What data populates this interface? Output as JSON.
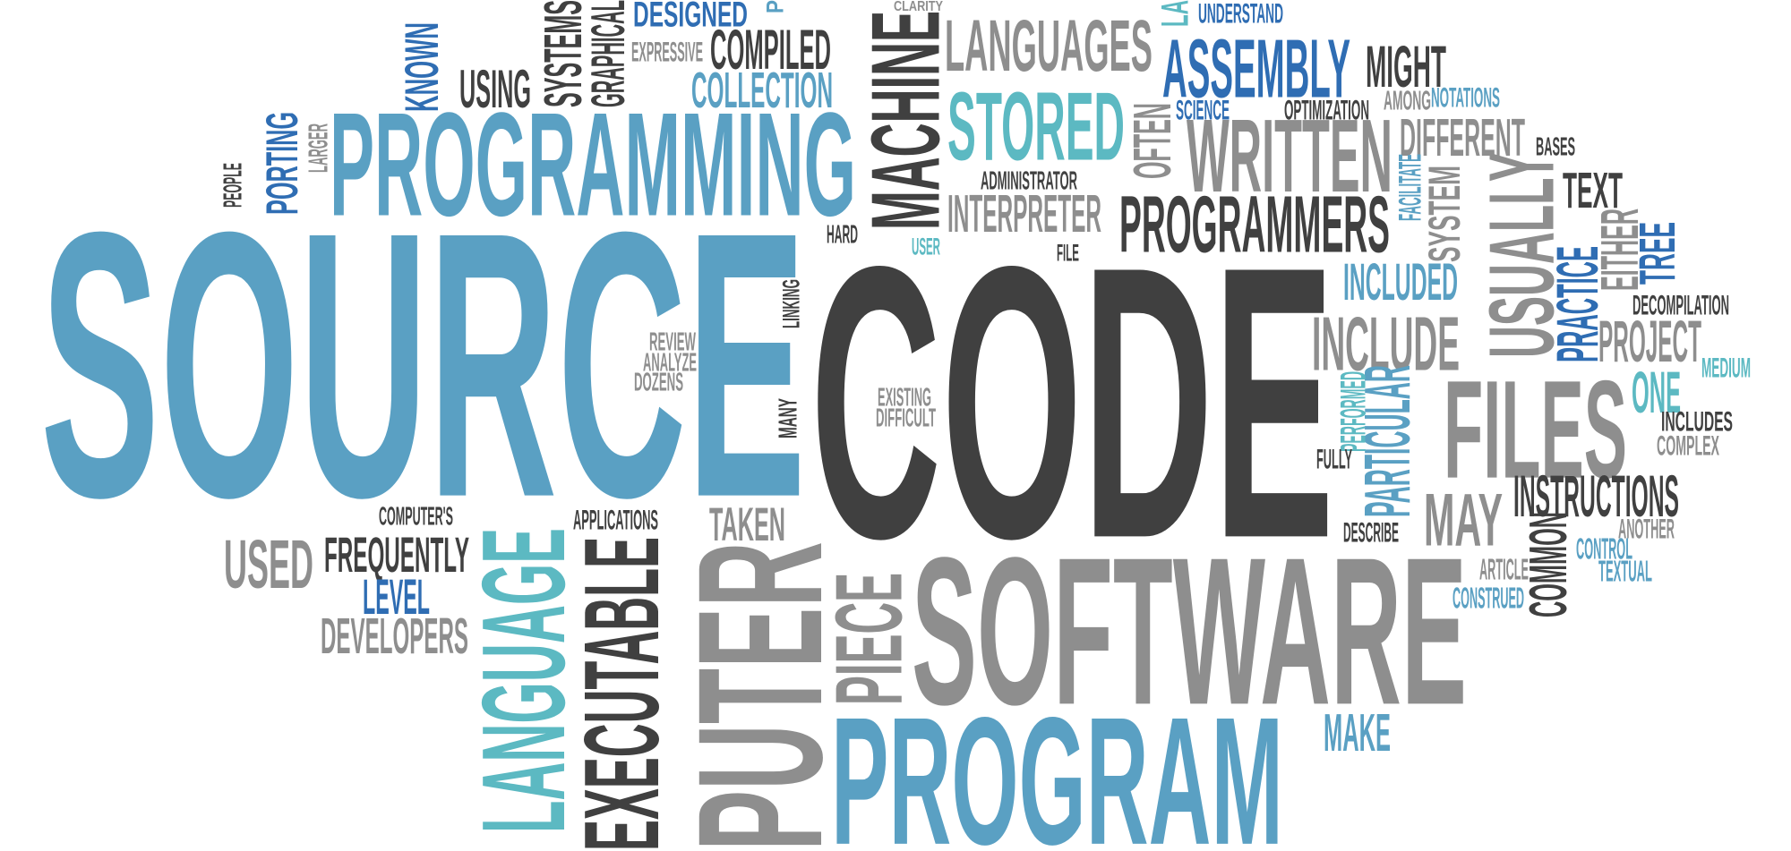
{
  "colors": {
    "dark": "#404040",
    "gray": "#8e8e8e",
    "blue": "#5aa0c3",
    "navy": "#2f6db3",
    "teal": "#5cb9c2"
  },
  "words": [
    {
      "text": "SOURCE",
      "color": "blue"
    },
    {
      "text": "CODE",
      "color": "dark"
    },
    {
      "text": "PROGRAMMING",
      "color": "blue"
    },
    {
      "text": "SOFTWARE",
      "color": "gray"
    },
    {
      "text": "PROGRAM",
      "color": "blue"
    },
    {
      "text": "PUTER",
      "color": "gray"
    },
    {
      "text": "EXECUTABLE",
      "color": "dark"
    },
    {
      "text": "LANGUAGE",
      "color": "teal"
    },
    {
      "text": "PIECE",
      "color": "gray"
    },
    {
      "text": "MACHINE",
      "color": "dark"
    },
    {
      "text": "LANGUAGES",
      "color": "gray"
    },
    {
      "text": "STORED",
      "color": "teal"
    },
    {
      "text": "ASSEMBLY",
      "color": "navy"
    },
    {
      "text": "MIGHT",
      "color": "dark"
    },
    {
      "text": "WRITTEN",
      "color": "gray"
    },
    {
      "text": "DIFFERENT",
      "color": "gray"
    },
    {
      "text": "PROGRAMMERS",
      "color": "dark"
    },
    {
      "text": "INTERPRETER",
      "color": "gray"
    },
    {
      "text": "ADMINISTRATOR",
      "color": "dark"
    },
    {
      "text": "INCLUDED",
      "color": "blue"
    },
    {
      "text": "INCLUDE",
      "color": "gray"
    },
    {
      "text": "USUALLY",
      "color": "gray"
    },
    {
      "text": "TEXT",
      "color": "dark"
    },
    {
      "text": "FILES",
      "color": "gray"
    },
    {
      "text": "PROJECT",
      "color": "gray"
    },
    {
      "text": "ONE",
      "color": "teal"
    },
    {
      "text": "MEDIUM",
      "color": "teal"
    },
    {
      "text": "DECOMPILATION",
      "color": "dark"
    },
    {
      "text": "TREE",
      "color": "navy"
    },
    {
      "text": "EITHER",
      "color": "gray"
    },
    {
      "text": "PRACTICE",
      "color": "navy"
    },
    {
      "text": "SYSTEM",
      "color": "gray"
    },
    {
      "text": "FACILITATE",
      "color": "blue"
    },
    {
      "text": "BASES",
      "color": "dark"
    },
    {
      "text": "OPTIMIZATION",
      "color": "dark"
    },
    {
      "text": "AMONG",
      "color": "gray"
    },
    {
      "text": "NOTATIONS",
      "color": "blue"
    },
    {
      "text": "SCIENCE",
      "color": "navy"
    },
    {
      "text": "OFTEN",
      "color": "gray"
    },
    {
      "text": "UNDERSTAND",
      "color": "navy"
    },
    {
      "text": "LA",
      "color": "teal"
    },
    {
      "text": "CLARITY",
      "color": "gray"
    },
    {
      "text": "INSTRUCTIONS",
      "color": "dark"
    },
    {
      "text": "MAY",
      "color": "gray"
    },
    {
      "text": "COMMON",
      "color": "dark"
    },
    {
      "text": "ANOTHER",
      "color": "gray"
    },
    {
      "text": "CONTROL",
      "color": "blue"
    },
    {
      "text": "TEXTUAL",
      "color": "blue"
    },
    {
      "text": "ARTICLE",
      "color": "gray"
    },
    {
      "text": "CONSTRUED",
      "color": "blue"
    },
    {
      "text": "INCLUDES",
      "color": "dark"
    },
    {
      "text": "COMPLEX",
      "color": "gray"
    },
    {
      "text": "PARTICULAR",
      "color": "blue"
    },
    {
      "text": "PERFORMED",
      "color": "teal"
    },
    {
      "text": "FULLY",
      "color": "dark"
    },
    {
      "text": "DESCRIBE",
      "color": "dark"
    },
    {
      "text": "MAKE",
      "color": "blue"
    },
    {
      "text": "EXISTING",
      "color": "gray"
    },
    {
      "text": "DIFFICULT",
      "color": "gray"
    },
    {
      "text": "FILE",
      "color": "dark"
    },
    {
      "text": "USER",
      "color": "teal"
    },
    {
      "text": "HARD",
      "color": "dark"
    },
    {
      "text": "LINKING",
      "color": "dark"
    },
    {
      "text": "MANY",
      "color": "dark"
    },
    {
      "text": "REVIEW",
      "color": "gray"
    },
    {
      "text": "ANALYZE",
      "color": "gray"
    },
    {
      "text": "DOZENS",
      "color": "gray"
    },
    {
      "text": "TAKEN",
      "color": "gray"
    },
    {
      "text": "APPLICATIONS",
      "color": "dark"
    },
    {
      "text": "COMPUTER'S",
      "color": "dark"
    },
    {
      "text": "USED",
      "color": "gray"
    },
    {
      "text": "FREQUENTLY",
      "color": "dark"
    },
    {
      "text": "LEVEL",
      "color": "navy"
    },
    {
      "text": "DEVELOPERS",
      "color": "gray"
    },
    {
      "text": "DESIGNED",
      "color": "navy"
    },
    {
      "text": "P",
      "color": "blue"
    },
    {
      "text": "EXPRESSIVE",
      "color": "gray"
    },
    {
      "text": "COMPILED",
      "color": "dark"
    },
    {
      "text": "COLLECTION",
      "color": "blue"
    },
    {
      "text": "GRAPHICAL",
      "color": "dark"
    },
    {
      "text": "SYSTEMS",
      "color": "dark"
    },
    {
      "text": "USING",
      "color": "dark"
    },
    {
      "text": "KNOWN",
      "color": "navy"
    },
    {
      "text": "PORTING",
      "color": "navy"
    },
    {
      "text": "LARGER",
      "color": "gray"
    },
    {
      "text": "PEOPLE",
      "color": "dark"
    }
  ]
}
